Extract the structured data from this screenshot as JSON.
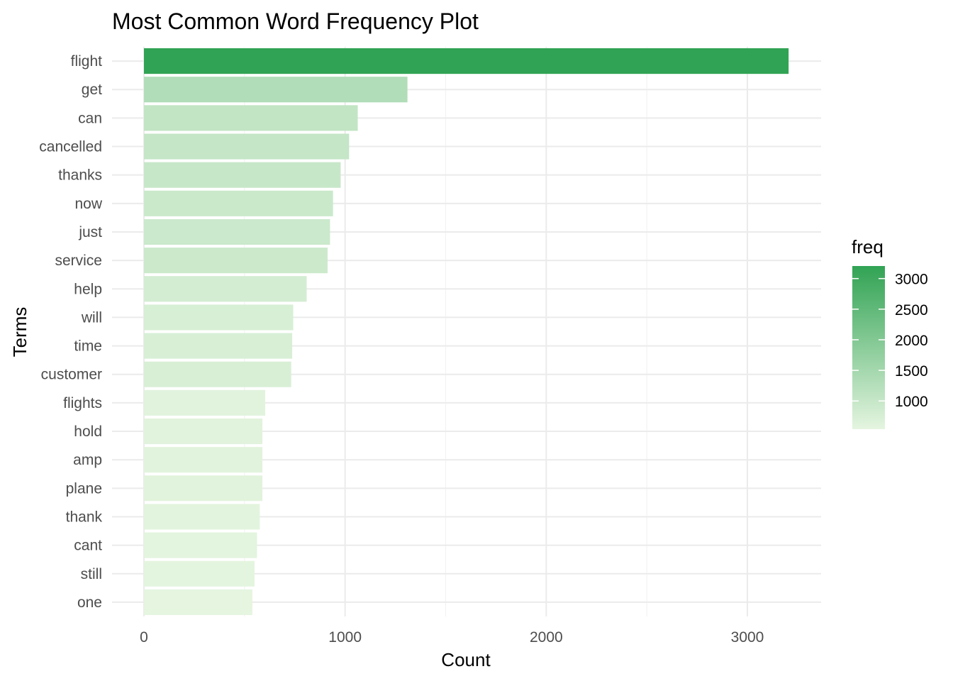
{
  "chart_data": {
    "type": "bar",
    "orientation": "horizontal",
    "title": "Most Common Word Frequency Plot",
    "xlabel": "Count",
    "ylabel": "Terms",
    "categories": [
      "flight",
      "get",
      "can",
      "cancelled",
      "thanks",
      "now",
      "just",
      "service",
      "help",
      "will",
      "time",
      "customer",
      "flights",
      "hold",
      "amp",
      "plane",
      "thank",
      "cant",
      "still",
      "one"
    ],
    "values": [
      3205,
      1310,
      1063,
      1020,
      978,
      940,
      925,
      913,
      809,
      742,
      737,
      732,
      603,
      589,
      589,
      589,
      576,
      562,
      550,
      539
    ],
    "xlim": [
      0,
      3360
    ],
    "x_ticks": [
      0,
      1000,
      2000,
      3000
    ],
    "x_tick_labels": [
      "0",
      "1000",
      "2000",
      "3000"
    ],
    "grid": true,
    "legend": {
      "title": "freq",
      "placement": "right",
      "type": "colorbar",
      "ticks": [
        1000,
        1500,
        2000,
        2500,
        3000
      ],
      "tick_labels": [
        "1000",
        "1500",
        "2000",
        "2500",
        "3000"
      ],
      "low_color": "#e5f5e0",
      "high_color": "#31a354"
    }
  }
}
